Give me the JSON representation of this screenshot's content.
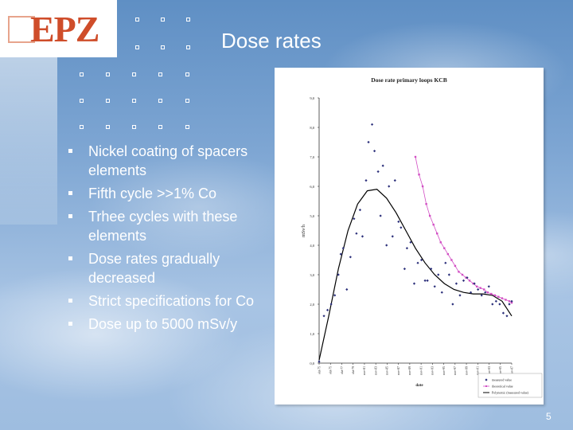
{
  "slide": {
    "title": "Dose rates",
    "logo_text": "EPZ",
    "page_number": "5",
    "colors": {
      "logo": "#cf4d2a",
      "text": "#ffffff",
      "measured": "#2b2f7a",
      "theoretical": "#d24fc4",
      "polynomial": "#000000"
    }
  },
  "bullets": [
    "Nickel coating of spacers elements",
    "Fifth cycle >>1% Co",
    "Trhee cycles with these elements",
    "Dose rates gradually decreased",
    "Strict specifications for Co",
    "Dose  up to 5000 mSv/y"
  ],
  "chart_data": {
    "type": "scatter",
    "title": "Dose rate primary loops KCB",
    "xlabel": "date",
    "ylabel": "mSv/h",
    "ylim": [
      0,
      9
    ],
    "yticks": [
      "0,0",
      "1,0",
      "2,0",
      "3,0",
      "4,0",
      "5,0",
      "6,0",
      "7,0",
      "8,0",
      "9,0"
    ],
    "xticks": [
      "okt-75",
      "okt-75",
      "okt-77",
      "okt-79",
      "nov-81",
      "nov-83",
      "nov-85",
      "nov-87",
      "nov-89",
      "nov-91",
      "nov-93",
      "nov-95",
      "nov-97",
      "nov-99",
      "nov-01",
      "nov-03",
      "nov-05",
      "nov-07"
    ],
    "legend": [
      "measured value",
      "theoretical value",
      "Polynomic (measured value)"
    ],
    "legend_position": "bottom-right",
    "series": [
      {
        "name": "measured value",
        "x": [
          0.0,
          0.4,
          0.7,
          1.0,
          1.3,
          1.6,
          1.8,
          2.0,
          2.3,
          2.6,
          2.9,
          3.1,
          3.4,
          3.6,
          3.9,
          4.1,
          4.4,
          4.6,
          4.9,
          5.1,
          5.3,
          5.6,
          5.8,
          6.1,
          6.3,
          6.6,
          6.8,
          7.1,
          7.3,
          7.6,
          7.9,
          8.2,
          8.5,
          8.8,
          9.0,
          9.3,
          9.6,
          9.9,
          10.2,
          10.5,
          10.8,
          11.1,
          11.4,
          11.7,
          12.0,
          12.3,
          12.6,
          12.9,
          13.2,
          13.5,
          13.8,
          14.1,
          14.4,
          14.7,
          15.0,
          15.3,
          15.6,
          15.8,
          16.0
        ],
        "y": [
          0.05,
          1.6,
          1.8,
          2.0,
          2.3,
          3.0,
          3.7,
          3.9,
          2.5,
          3.6,
          4.9,
          4.4,
          5.2,
          4.3,
          6.2,
          7.5,
          8.1,
          7.2,
          6.5,
          5.0,
          6.7,
          4.0,
          6.0,
          4.3,
          6.2,
          4.8,
          4.6,
          3.2,
          3.9,
          4.1,
          2.7,
          3.4,
          3.5,
          2.8,
          2.8,
          3.2,
          2.6,
          3.0,
          2.4,
          3.4,
          3.0,
          2.0,
          2.7,
          2.3,
          2.8,
          2.9,
          2.4,
          2.7,
          2.5,
          2.3,
          2.4,
          2.6,
          2.0,
          2.1,
          2.0,
          1.7,
          1.6,
          2.0,
          2.1
        ],
        "point_color": "#2b2f7a"
      },
      {
        "name": "theoretical value",
        "x": [
          8.0,
          8.3,
          8.6,
          8.9,
          9.2,
          9.5,
          9.8,
          10.1,
          10.4,
          10.7,
          11.0,
          11.3,
          11.6,
          11.9,
          12.2,
          12.5,
          12.8,
          13.1,
          13.4,
          13.7,
          14.0,
          14.3,
          14.6,
          14.9,
          15.2,
          15.5,
          15.8,
          16.0
        ],
        "y": [
          7.0,
          6.4,
          6.0,
          5.4,
          5.0,
          4.7,
          4.4,
          4.1,
          3.9,
          3.7,
          3.5,
          3.3,
          3.1,
          3.0,
          2.9,
          2.8,
          2.7,
          2.6,
          2.55,
          2.5,
          2.4,
          2.35,
          2.3,
          2.25,
          2.2,
          2.15,
          2.1,
          2.05
        ],
        "point_color": "#d24fc4"
      },
      {
        "name": "Polynomic (measured value)",
        "x": [
          0.0,
          0.8,
          1.6,
          2.4,
          3.2,
          4.0,
          4.8,
          5.6,
          6.4,
          7.2,
          8.0,
          8.8,
          9.6,
          10.4,
          11.2,
          12.0,
          12.8,
          13.6,
          14.4,
          15.2,
          16.0
        ],
        "y": [
          0.1,
          1.6,
          3.2,
          4.5,
          5.4,
          5.85,
          5.9,
          5.6,
          5.1,
          4.5,
          3.9,
          3.4,
          3.0,
          2.7,
          2.5,
          2.4,
          2.35,
          2.35,
          2.3,
          2.1,
          1.6
        ],
        "line_color": "#000000"
      }
    ]
  }
}
